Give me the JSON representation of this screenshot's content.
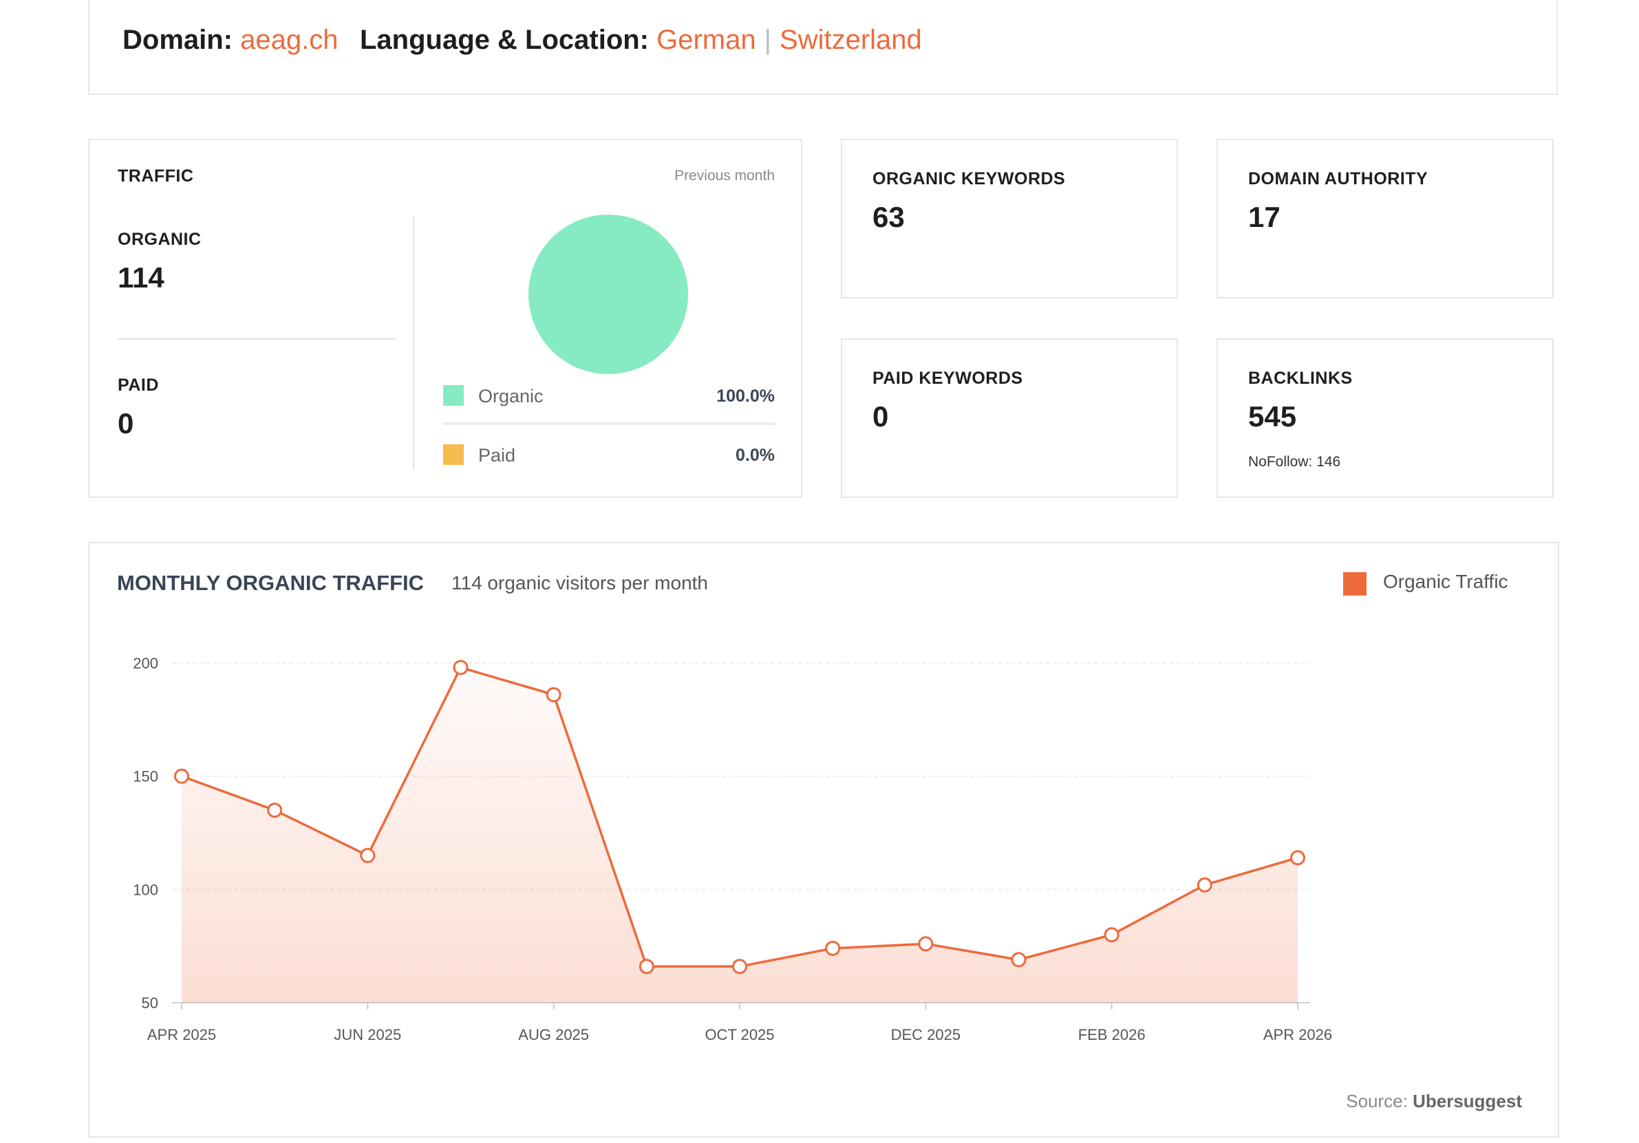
{
  "header": {
    "domain_label": "Domain:",
    "domain_value": "aeag.ch",
    "lang_label": "Language & Location:",
    "language": "German",
    "separator": "|",
    "location": "Switzerland"
  },
  "traffic": {
    "title": "TRAFFIC",
    "period": "Previous month",
    "organic_label": "ORGANIC",
    "organic_value": "114",
    "paid_label": "PAID",
    "paid_value": "0",
    "legend": [
      {
        "label": "Organic",
        "value": "100.0%",
        "color": "#86ebc3"
      },
      {
        "label": "Paid",
        "value": "0.0%",
        "color": "#f7bc4e"
      }
    ]
  },
  "stats": {
    "organic_keywords": {
      "label": "ORGANIC KEYWORDS",
      "value": "63"
    },
    "domain_authority": {
      "label": "DOMAIN AUTHORITY",
      "value": "17"
    },
    "paid_keywords": {
      "label": "PAID KEYWORDS",
      "value": "0"
    },
    "backlinks": {
      "label": "BACKLINKS",
      "value": "545",
      "nofollow": "NoFollow: 146"
    }
  },
  "monthly": {
    "title": "MONTHLY ORGANIC TRAFFIC",
    "subtitle": "114 organic visitors per month",
    "legend_label": "Organic Traffic",
    "source_prefix": "Source:",
    "source_name": "Ubersuggest"
  },
  "colors": {
    "accent": "#ee6a3b",
    "organic": "#86ebc3",
    "paid": "#f7bc4e"
  },
  "chart_data": {
    "type": "area",
    "title": "MONTHLY ORGANIC TRAFFIC",
    "x": [
      "APR 2025",
      "MAY 2025",
      "JUN 2025",
      "JUL 2025",
      "AUG 2025",
      "SEP 2025",
      "OCT 2025",
      "NOV 2025",
      "DEC 2025",
      "JAN 2026",
      "FEB 2026",
      "MAR 2026",
      "APR 2026"
    ],
    "x_tick_labels": [
      "APR 2025",
      "",
      "JUN 2025",
      "",
      "AUG 2025",
      "",
      "OCT 2025",
      "",
      "DEC 2025",
      "",
      "FEB 2026",
      "",
      "APR 2026"
    ],
    "series": [
      {
        "name": "Organic Traffic",
        "values": [
          150,
          135,
          115,
          198,
          186,
          66,
          66,
          74,
          76,
          69,
          80,
          102,
          114
        ]
      }
    ],
    "ylim": [
      50,
      200
    ],
    "yticks": [
      200,
      150,
      100,
      50
    ],
    "grid": true,
    "legend": "top-right"
  }
}
